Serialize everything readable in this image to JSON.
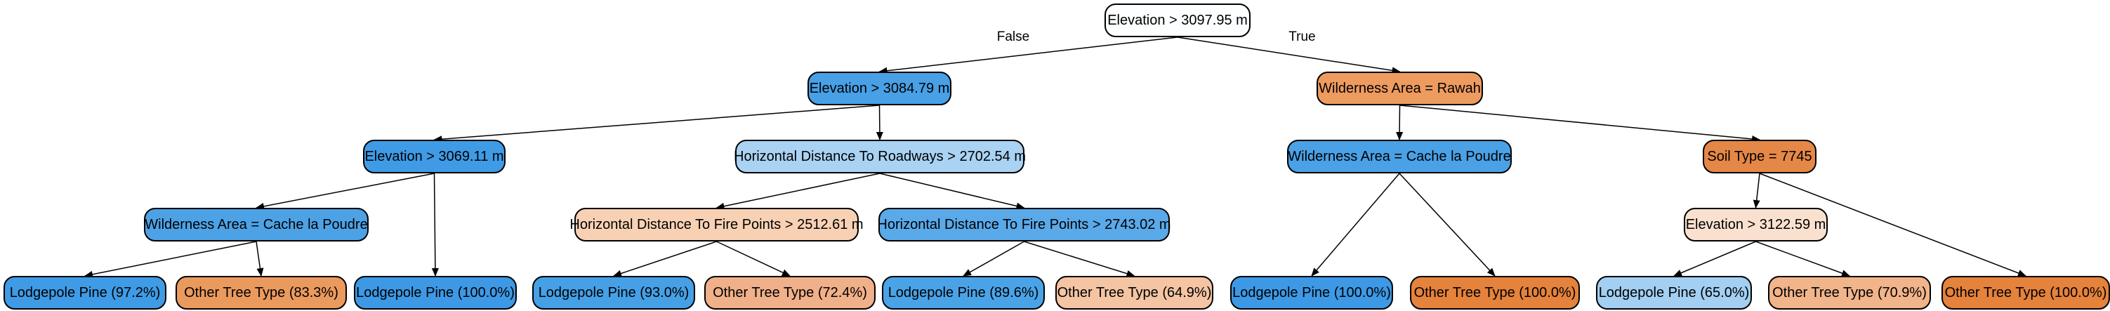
{
  "tree": {
    "edge_labels": {
      "false": "False",
      "true": "True"
    },
    "nodes": [
      {
        "id": "n0",
        "label": "Elevation > 3097.95 m",
        "color": "#fdfeff"
      },
      {
        "id": "n1",
        "label": "Elevation > 3084.79 m",
        "color": "#48a0e6"
      },
      {
        "id": "n2",
        "label": "Wilderness Area = Rawah",
        "color": "#ee9b5f"
      },
      {
        "id": "n3",
        "label": "Elevation > 3069.11 m",
        "color": "#3f9be5"
      },
      {
        "id": "n4",
        "label": "Horizontal Distance To Roadways > 2702.54 m",
        "color": "#a9d2f3"
      },
      {
        "id": "n5",
        "label": "Wilderness Area = Cache la Poudre",
        "color": "#4aa1e6"
      },
      {
        "id": "n6",
        "label": "Soil Type = 7745",
        "color": "#e58746"
      },
      {
        "id": "n7",
        "label": "Wilderness Area = Cache la Poudre",
        "color": "#4da2e6"
      },
      {
        "id": "n8",
        "label": "Horizontal Distance To Fire Points > 2512.61 m",
        "color": "#f8d1b4"
      },
      {
        "id": "n9",
        "label": "Horizontal Distance To Fire Points > 2743.02 m",
        "color": "#5aa9e9"
      },
      {
        "id": "n10",
        "label": "Elevation > 3122.59 m",
        "color": "#fae1cf"
      },
      {
        "id": "n11",
        "label": "Lodgepole Pine (97.2%)",
        "color": "#3f9be5"
      },
      {
        "id": "n12",
        "label": "Other Tree Type (83.3%)",
        "color": "#eb9a5e"
      },
      {
        "id": "n13",
        "label": "Lodgepole Pine (100.0%)",
        "color": "#3d99e5"
      },
      {
        "id": "n14",
        "label": "Lodgepole Pine (93.0%)",
        "color": "#45a0e6"
      },
      {
        "id": "n15",
        "label": "Other Tree Type (72.4%)",
        "color": "#f0b089"
      },
      {
        "id": "n16",
        "label": "Lodgepole Pine (89.6%)",
        "color": "#4aa3e7"
      },
      {
        "id": "n17",
        "label": "Other Tree Type (64.9%)",
        "color": "#f4c4a3"
      },
      {
        "id": "n18",
        "label": "Lodgepole Pine (100.0%)",
        "color": "#3d99e5"
      },
      {
        "id": "n19",
        "label": "Other Tree Type (100.0%)",
        "color": "#e5823c"
      },
      {
        "id": "n20",
        "label": "Lodgepole Pine (65.0%)",
        "color": "#a2cff2"
      },
      {
        "id": "n21",
        "label": "Other Tree Type (70.9%)",
        "color": "#f1b48b"
      },
      {
        "id": "n22",
        "label": "Other Tree Type (100.0%)",
        "color": "#e5823c"
      }
    ],
    "edges": [
      {
        "from": "n0",
        "to": "n1",
        "label": "false"
      },
      {
        "from": "n0",
        "to": "n2",
        "label": "true"
      },
      {
        "from": "n1",
        "to": "n3"
      },
      {
        "from": "n1",
        "to": "n4"
      },
      {
        "from": "n2",
        "to": "n5"
      },
      {
        "from": "n2",
        "to": "n6"
      },
      {
        "from": "n3",
        "to": "n7"
      },
      {
        "from": "n3",
        "to": "n13"
      },
      {
        "from": "n4",
        "to": "n8"
      },
      {
        "from": "n4",
        "to": "n9"
      },
      {
        "from": "n5",
        "to": "n18"
      },
      {
        "from": "n5",
        "to": "n19"
      },
      {
        "from": "n6",
        "to": "n10"
      },
      {
        "from": "n6",
        "to": "n22"
      },
      {
        "from": "n7",
        "to": "n11"
      },
      {
        "from": "n7",
        "to": "n12"
      },
      {
        "from": "n8",
        "to": "n14"
      },
      {
        "from": "n8",
        "to": "n15"
      },
      {
        "from": "n9",
        "to": "n16"
      },
      {
        "from": "n9",
        "to": "n17"
      },
      {
        "from": "n10",
        "to": "n20"
      },
      {
        "from": "n10",
        "to": "n21"
      }
    ]
  }
}
